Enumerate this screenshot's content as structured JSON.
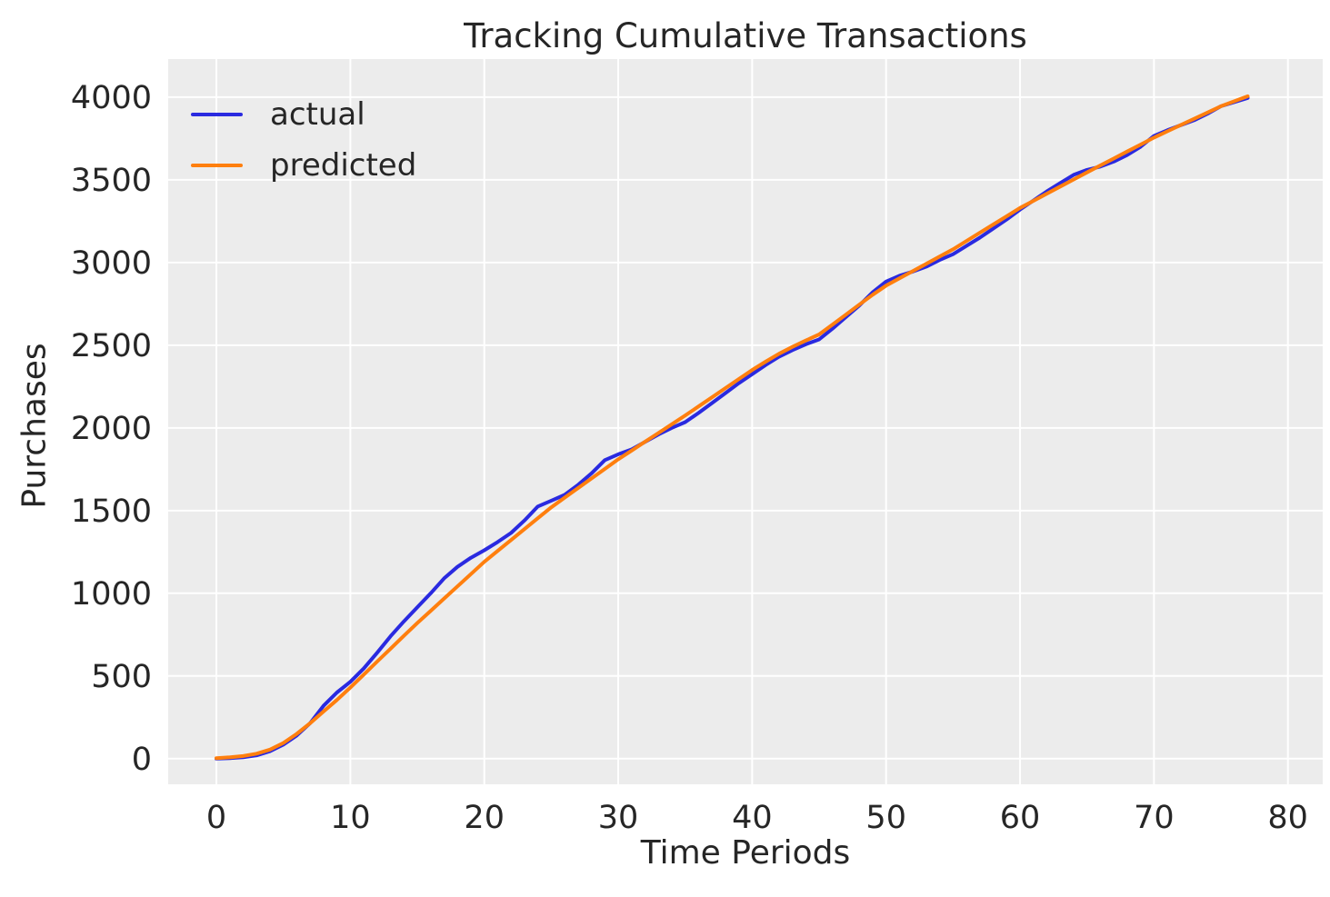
{
  "title": "Tracking Cumulative Transactions",
  "colors": {
    "plot_bg": "#ececec",
    "grid": "#ffffff",
    "text": "#262626",
    "actual": "#2a2ae0",
    "predicted": "#ff7f0e"
  },
  "legend": {
    "position": "upper left",
    "items": [
      {
        "label": "actual",
        "color": "#2a2ae0"
      },
      {
        "label": "predicted",
        "color": "#ff7f0e"
      }
    ]
  },
  "chart_data": {
    "type": "line",
    "title": "Tracking Cumulative Transactions",
    "xlabel": "Time Periods",
    "ylabel": "Purchases",
    "xlim": [
      -3.6,
      82.6
    ],
    "ylim": [
      -155,
      4230
    ],
    "grid": true,
    "legend_position": "upper left",
    "x_ticks": [
      0,
      10,
      20,
      30,
      40,
      50,
      60,
      70,
      80
    ],
    "y_ticks": [
      0,
      500,
      1000,
      1500,
      2000,
      2500,
      3000,
      3500,
      4000
    ],
    "x": [
      0,
      1,
      2,
      3,
      4,
      5,
      6,
      7,
      8,
      9,
      10,
      11,
      12,
      13,
      14,
      15,
      16,
      17,
      18,
      19,
      20,
      21,
      22,
      23,
      24,
      25,
      26,
      27,
      28,
      29,
      30,
      31,
      32,
      33,
      34,
      35,
      36,
      37,
      38,
      39,
      40,
      41,
      42,
      43,
      44,
      45,
      46,
      47,
      48,
      49,
      50,
      51,
      52,
      53,
      54,
      55,
      56,
      57,
      58,
      59,
      60,
      61,
      62,
      63,
      64,
      65,
      66,
      67,
      68,
      69,
      70,
      71,
      72,
      73,
      74,
      75,
      76,
      77
    ],
    "series": [
      {
        "name": "actual",
        "color": "#2a2ae0",
        "values": [
          0,
          3,
          8,
          20,
          45,
          85,
          140,
          215,
          320,
          400,
          465,
          545,
          640,
          740,
          830,
          915,
          1000,
          1090,
          1160,
          1215,
          1260,
          1310,
          1365,
          1440,
          1525,
          1560,
          1595,
          1655,
          1725,
          1805,
          1840,
          1870,
          1915,
          1960,
          2000,
          2035,
          2090,
          2150,
          2210,
          2270,
          2325,
          2380,
          2430,
          2470,
          2505,
          2535,
          2600,
          2670,
          2740,
          2820,
          2885,
          2920,
          2945,
          2975,
          3015,
          3050,
          3100,
          3150,
          3205,
          3260,
          3320,
          3375,
          3430,
          3480,
          3530,
          3560,
          3580,
          3610,
          3650,
          3700,
          3765,
          3800,
          3830,
          3860,
          3900,
          3945,
          3970,
          3995
        ]
      },
      {
        "name": "predicted",
        "color": "#ff7f0e",
        "values": [
          3,
          8,
          16,
          30,
          55,
          95,
          150,
          215,
          285,
          355,
          430,
          508,
          587,
          665,
          743,
          820,
          894,
          968,
          1042,
          1116,
          1190,
          1256,
          1322,
          1388,
          1454,
          1520,
          1578,
          1636,
          1694,
          1752,
          1810,
          1863,
          1916,
          1969,
          2022,
          2075,
          2130,
          2185,
          2240,
          2295,
          2350,
          2400,
          2448,
          2490,
          2528,
          2565,
          2625,
          2685,
          2745,
          2805,
          2860,
          2904,
          2948,
          2992,
          3036,
          3080,
          3130,
          3180,
          3230,
          3280,
          3330,
          3373,
          3416,
          3459,
          3502,
          3545,
          3587,
          3629,
          3671,
          3713,
          3755,
          3793,
          3831,
          3869,
          3907,
          3945,
          3975,
          4005
        ]
      }
    ]
  }
}
